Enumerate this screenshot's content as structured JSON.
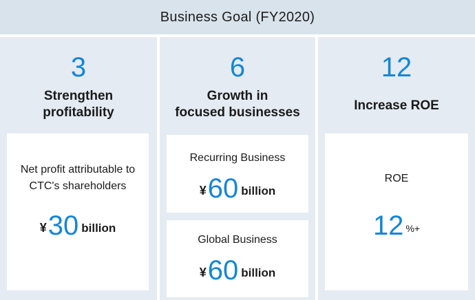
{
  "header": {
    "title": "Business Goal (FY2020)"
  },
  "columns": [
    {
      "number": "3",
      "title_line1": "Strengthen",
      "title_line2": "profitability",
      "card": {
        "desc_line1": "Net profit attributable to",
        "desc_line2": "CTC's shareholders",
        "currency": "¥",
        "value": "30",
        "unit": "billion"
      }
    },
    {
      "number": "6",
      "title_line1": "Growth in",
      "title_line2": "focused businesses",
      "cards": [
        {
          "label": "Recurring Business",
          "currency": "¥",
          "value": "60",
          "unit": "billion"
        },
        {
          "label": "Global Business",
          "currency": "¥",
          "value": "60",
          "unit": "billion"
        }
      ]
    },
    {
      "number": "12",
      "title": "Increase ROE",
      "card": {
        "label": "ROE",
        "value": "12",
        "unit": "%+"
      }
    }
  ]
}
